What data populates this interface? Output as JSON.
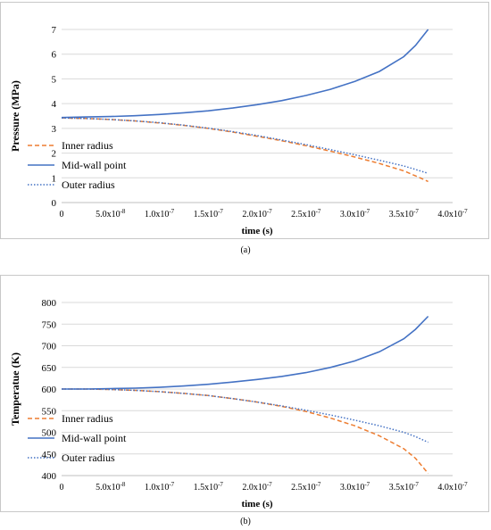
{
  "chart_data": [
    {
      "type": "line",
      "panel_label": "(a)",
      "xlabel": "time (s)",
      "ylabel": "Pressure (MPa)",
      "xlim": [
        0,
        4e-07
      ],
      "ylim": [
        0,
        7
      ],
      "x_ticks": [
        0,
        5e-08,
        1e-07,
        1.5e-07,
        2e-07,
        2.5e-07,
        3e-07,
        3.5e-07,
        4e-07
      ],
      "x_tick_labels": [
        "0",
        "5.0x10-8",
        "1.0x10-7",
        "1.5x10-7",
        "2.0x10-7",
        "2.5x10-7",
        "3.0x10-7",
        "3.5x10-7",
        "4.0x10-7"
      ],
      "y_ticks": [
        0,
        1,
        2,
        3,
        4,
        5,
        6,
        7
      ],
      "y_tick_labels": [
        "0",
        "1",
        "2",
        "3",
        "4",
        "5",
        "6",
        "7"
      ],
      "grid": "horizontal",
      "legend_position": "lower-left",
      "x": [
        0,
        2.5e-08,
        5e-08,
        7.5e-08,
        1e-07,
        1.25e-07,
        1.5e-07,
        1.75e-07,
        2e-07,
        2.25e-07,
        2.5e-07,
        2.75e-07,
        3e-07,
        3.25e-07,
        3.5e-07,
        3.62e-07,
        3.75e-07
      ],
      "series": [
        {
          "name": "Inner radius",
          "color": "#ed7d31",
          "dash": "dashed",
          "values": [
            3.42,
            3.4,
            3.36,
            3.3,
            3.22,
            3.12,
            3.0,
            2.85,
            2.68,
            2.5,
            2.3,
            2.08,
            1.84,
            1.58,
            1.28,
            1.08,
            0.85
          ]
        },
        {
          "name": "Mid-wall point",
          "color": "#4472c4",
          "dash": "solid",
          "values": [
            3.44,
            3.46,
            3.48,
            3.51,
            3.56,
            3.63,
            3.71,
            3.82,
            3.96,
            4.12,
            4.33,
            4.58,
            4.9,
            5.3,
            5.9,
            6.35,
            7.0
          ]
        },
        {
          "name": "Outer radius",
          "color": "#4472c4",
          "dash": "dotted",
          "values": [
            3.42,
            3.4,
            3.36,
            3.3,
            3.23,
            3.13,
            3.01,
            2.87,
            2.71,
            2.53,
            2.34,
            2.14,
            1.93,
            1.71,
            1.48,
            1.34,
            1.18
          ]
        }
      ]
    },
    {
      "type": "line",
      "panel_label": "(b)",
      "xlabel": "time (s)",
      "ylabel": "Temperatue (K)",
      "xlim": [
        0,
        4e-07
      ],
      "ylim": [
        400,
        800
      ],
      "x_ticks": [
        0,
        5e-08,
        1e-07,
        1.5e-07,
        2e-07,
        2.5e-07,
        3e-07,
        3.5e-07,
        4e-07
      ],
      "x_tick_labels": [
        "0",
        "5.0x10-8",
        "1.0x10-7",
        "1.5x10-7",
        "2.0x10-7",
        "2.5x10-7",
        "3.0x10-7",
        "3.5x10-7",
        "4.0x10-7"
      ],
      "y_ticks": [
        400,
        450,
        500,
        550,
        600,
        650,
        700,
        750,
        800
      ],
      "y_tick_labels": [
        "400",
        "450",
        "500",
        "550",
        "600",
        "650",
        "700",
        "750",
        "800"
      ],
      "grid": "horizontal",
      "legend_position": "lower-left",
      "x": [
        0,
        2.5e-08,
        5e-08,
        7.5e-08,
        1e-07,
        1.25e-07,
        1.5e-07,
        1.75e-07,
        2e-07,
        2.25e-07,
        2.5e-07,
        2.75e-07,
        3e-07,
        3.25e-07,
        3.5e-07,
        3.62e-07,
        3.75e-07
      ],
      "series": [
        {
          "name": "Inner radius",
          "color": "#ed7d31",
          "dash": "dashed",
          "values": [
            600,
            600,
            599,
            597,
            594,
            590,
            585,
            578,
            570,
            560,
            548,
            533,
            515,
            492,
            462,
            440,
            405
          ]
        },
        {
          "name": "Mid-wall point",
          "color": "#4472c4",
          "dash": "solid",
          "values": [
            600,
            600,
            601,
            602,
            604,
            607,
            611,
            616,
            622,
            629,
            638,
            650,
            665,
            686,
            716,
            738,
            768
          ]
        },
        {
          "name": "Outer radius",
          "color": "#4472c4",
          "dash": "dotted",
          "values": [
            600,
            600,
            599,
            597,
            594,
            590,
            585,
            578,
            570,
            561,
            551,
            540,
            528,
            515,
            500,
            490,
            477
          ]
        }
      ]
    }
  ]
}
